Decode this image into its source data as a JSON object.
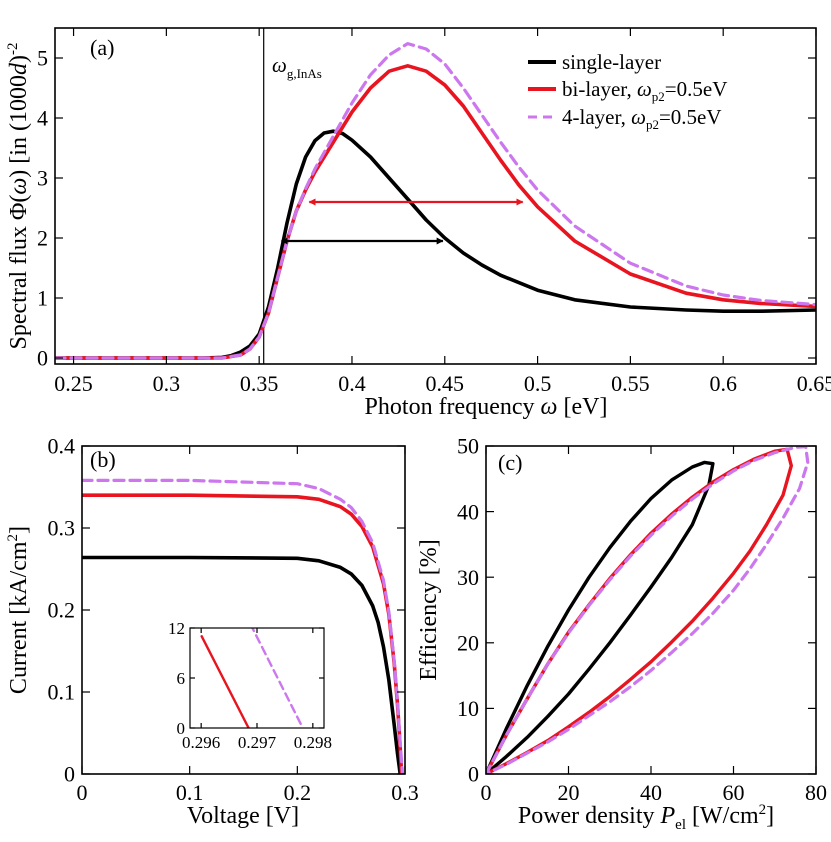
{
  "chart_data": [
    {
      "panel": "(a)",
      "type": "line",
      "xlabel": "Photon frequency",
      "xsymbol": "ω",
      "xunit": "[eV]",
      "ylabel_main": "Spectral flux Φ(",
      "ylabel_sym": "ω",
      "ylabel_rest": ") [in  (1000",
      "ylabel_d": "d",
      "ylabel_end": ")",
      "ylabel_exp": "-2",
      "xlim": [
        0.24,
        0.65
      ],
      "ylim": [
        -0.1,
        5.5
      ],
      "xticks": [
        0.25,
        0.3,
        0.35,
        0.4,
        0.45,
        0.5,
        0.55,
        0.6,
        0.65
      ],
      "xtick_labels": [
        "0.25",
        "0.3",
        "0.35",
        "0.4",
        "0.45",
        "0.5",
        "0.55",
        "0.6",
        "0.65"
      ],
      "yticks": [
        0,
        1,
        2,
        3,
        4,
        5
      ],
      "ytick_labels": [
        "0",
        "1",
        "2",
        "3",
        "4",
        "5"
      ],
      "vline": {
        "x": 0.354,
        "label_sym": "ω",
        "label_sub": "g,InAs"
      },
      "legend_position": "top-right",
      "series": [
        {
          "name_main": "single-layer",
          "name_sym": "",
          "name_sub": "",
          "name_end": "",
          "color": "#000000",
          "dash": "",
          "x": [
            0.24,
            0.3,
            0.32,
            0.33,
            0.335,
            0.34,
            0.345,
            0.35,
            0.355,
            0.36,
            0.365,
            0.37,
            0.375,
            0.38,
            0.385,
            0.39,
            0.395,
            0.4,
            0.41,
            0.42,
            0.43,
            0.44,
            0.45,
            0.46,
            0.47,
            0.48,
            0.5,
            0.52,
            0.55,
            0.58,
            0.6,
            0.62,
            0.65
          ],
          "y": [
            0,
            0,
            0,
            0.01,
            0.04,
            0.1,
            0.2,
            0.4,
            0.85,
            1.5,
            2.25,
            2.9,
            3.35,
            3.62,
            3.75,
            3.78,
            3.74,
            3.63,
            3.35,
            3.0,
            2.65,
            2.3,
            2.0,
            1.75,
            1.55,
            1.38,
            1.13,
            0.97,
            0.85,
            0.8,
            0.78,
            0.78,
            0.8
          ]
        },
        {
          "name_main": "bi-layer, ",
          "name_sym": "ω",
          "name_sub": "p2",
          "name_end": "=0.5eV",
          "color": "#e8141f",
          "dash": "",
          "x": [
            0.24,
            0.33,
            0.34,
            0.345,
            0.35,
            0.355,
            0.36,
            0.365,
            0.37,
            0.375,
            0.38,
            0.39,
            0.4,
            0.41,
            0.42,
            0.43,
            0.44,
            0.45,
            0.46,
            0.47,
            0.48,
            0.49,
            0.5,
            0.52,
            0.55,
            0.58,
            0.6,
            0.62,
            0.65
          ],
          "y": [
            0,
            0,
            0.05,
            0.15,
            0.35,
            0.75,
            1.35,
            1.95,
            2.45,
            2.8,
            3.1,
            3.6,
            4.1,
            4.5,
            4.78,
            4.87,
            4.78,
            4.55,
            4.2,
            3.75,
            3.3,
            2.88,
            2.52,
            1.95,
            1.4,
            1.08,
            0.97,
            0.91,
            0.86
          ]
        },
        {
          "name_main": "4-layer, ",
          "name_sym": "ω",
          "name_sub": "p2",
          "name_end": "=0.5eV",
          "color": "#cc77ee",
          "dash": "10,6",
          "x": [
            0.24,
            0.33,
            0.34,
            0.345,
            0.35,
            0.355,
            0.36,
            0.365,
            0.37,
            0.375,
            0.38,
            0.39,
            0.4,
            0.41,
            0.42,
            0.43,
            0.44,
            0.45,
            0.46,
            0.47,
            0.48,
            0.49,
            0.5,
            0.52,
            0.55,
            0.58,
            0.6,
            0.62,
            0.65
          ],
          "y": [
            0,
            0,
            0.05,
            0.15,
            0.35,
            0.75,
            1.35,
            1.95,
            2.45,
            2.82,
            3.15,
            3.7,
            4.25,
            4.72,
            5.05,
            5.24,
            5.15,
            4.9,
            4.5,
            4.05,
            3.6,
            3.18,
            2.8,
            2.2,
            1.58,
            1.2,
            1.05,
            0.96,
            0.89
          ]
        }
      ],
      "fwhm_arrows": [
        {
          "series": "single-layer",
          "x1": 0.362,
          "x2": 0.449,
          "y": 1.95,
          "color": "#000000"
        },
        {
          "series": "bi-layer",
          "x1": 0.377,
          "x2": 0.492,
          "y": 2.6,
          "color": "#e8141f"
        }
      ]
    },
    {
      "panel": "(b)",
      "type": "line",
      "xlabel": "Voltage [V]",
      "ylabel": "Current [kA/cm",
      "ylabel_exp": "2",
      "ylabel_end": "]",
      "xlim": [
        0,
        0.3
      ],
      "ylim": [
        0,
        0.4
      ],
      "xticks": [
        0,
        0.1,
        0.2,
        0.3
      ],
      "xtick_labels": [
        "0",
        "0.1",
        "0.2",
        "0.3"
      ],
      "yticks": [
        0,
        0.1,
        0.2,
        0.3,
        0.4
      ],
      "ytick_labels": [
        "0",
        "0.1",
        "0.2",
        "0.3",
        "0.4"
      ],
      "series": [
        {
          "name": "single-layer",
          "color": "#000000",
          "dash": "",
          "x": [
            0,
            0.1,
            0.2,
            0.22,
            0.24,
            0.25,
            0.26,
            0.27,
            0.275,
            0.28,
            0.285,
            0.29,
            0.293,
            0.2955
          ],
          "y": [
            0.264,
            0.264,
            0.263,
            0.26,
            0.252,
            0.244,
            0.23,
            0.205,
            0.185,
            0.155,
            0.115,
            0.06,
            0.025,
            0
          ]
        },
        {
          "name": "bi-layer",
          "color": "#e8141f",
          "dash": "",
          "x": [
            0,
            0.1,
            0.2,
            0.22,
            0.24,
            0.25,
            0.26,
            0.27,
            0.28,
            0.285,
            0.29,
            0.293,
            0.295,
            0.2968
          ],
          "y": [
            0.34,
            0.34,
            0.338,
            0.335,
            0.326,
            0.317,
            0.302,
            0.277,
            0.232,
            0.195,
            0.135,
            0.085,
            0.045,
            0
          ]
        },
        {
          "name": "4-layer",
          "color": "#cc77ee",
          "dash": "10,6",
          "x": [
            0,
            0.1,
            0.2,
            0.22,
            0.24,
            0.25,
            0.26,
            0.27,
            0.28,
            0.285,
            0.29,
            0.293,
            0.295,
            0.2977
          ],
          "y": [
            0.358,
            0.358,
            0.354,
            0.348,
            0.335,
            0.325,
            0.308,
            0.282,
            0.236,
            0.198,
            0.138,
            0.088,
            0.048,
            0
          ]
        }
      ],
      "inset": {
        "xlim": [
          0.2958,
          0.2982
        ],
        "ylim": [
          0,
          12
        ],
        "xticks": [
          0.296,
          0.297,
          0.298
        ],
        "xtick_labels": [
          "0.296",
          "0.297",
          "0.298"
        ],
        "yticks": [
          0,
          6,
          12
        ],
        "ytick_labels": [
          "0",
          "6",
          "12"
        ],
        "series": [
          {
            "name": "bi-layer",
            "color": "#e8141f",
            "dash": "",
            "x": [
              0.29601,
              0.29685
            ],
            "y": [
              11,
              0
            ]
          },
          {
            "name": "4-layer",
            "color": "#cc77ee",
            "dash": "8,5",
            "x": [
              0.29688,
              0.29782
            ],
            "y": [
              12.5,
              0
            ]
          }
        ]
      }
    },
    {
      "panel": "(c)",
      "type": "line",
      "xlabel": "Power density ",
      "xlabel_sym": "P",
      "xlabel_sub": "el",
      "xlabel_unit": " [W/cm",
      "xlabel_exp": "2",
      "xlabel_end": "]",
      "ylabel": "Efficiency [%]",
      "xlim": [
        0,
        80
      ],
      "ylim": [
        0,
        50
      ],
      "xticks": [
        0,
        20,
        40,
        60,
        80
      ],
      "xtick_labels": [
        "0",
        "20",
        "40",
        "60",
        "80"
      ],
      "yticks": [
        0,
        10,
        20,
        30,
        40,
        50
      ],
      "ytick_labels": [
        "0",
        "10",
        "20",
        "30",
        "40",
        "50"
      ],
      "series": [
        {
          "name": "single-layer",
          "color": "#000000",
          "dash": "",
          "x": [
            0,
            5,
            10,
            15,
            20,
            25,
            30,
            35,
            40,
            45,
            50,
            53,
            55,
            54,
            50,
            45,
            40,
            35,
            30,
            25,
            20,
            15,
            10,
            5,
            0
          ],
          "y": [
            0,
            7,
            13.5,
            19.5,
            25,
            30,
            34.5,
            38.5,
            42,
            44.8,
            46.8,
            47.5,
            47.3,
            44,
            38,
            33,
            28.5,
            24.2,
            20,
            16,
            12.2,
            8.8,
            5.6,
            2.7,
            0
          ]
        },
        {
          "name": "bi-layer",
          "color": "#e8141f",
          "dash": "",
          "x": [
            0,
            5,
            10,
            15,
            20,
            25,
            30,
            35,
            40,
            45,
            50,
            55,
            60,
            65,
            70,
            73,
            74,
            72,
            68,
            64,
            60,
            55,
            50,
            45,
            40,
            35,
            30,
            25,
            20,
            15,
            10,
            5,
            0
          ],
          "y": [
            0,
            6,
            11.5,
            16.8,
            21.6,
            25.8,
            29.8,
            33.4,
            36.7,
            39.6,
            42.2,
            44.5,
            46.4,
            48,
            49.2,
            49.5,
            47,
            42.5,
            38,
            34,
            30.6,
            26.8,
            23.3,
            20.1,
            17.1,
            14.4,
            11.8,
            9.4,
            7.2,
            5.1,
            3.3,
            1.6,
            0
          ]
        },
        {
          "name": "4-layer",
          "color": "#cc77ee",
          "dash": "9,6",
          "x": [
            0,
            5,
            10,
            15,
            20,
            25,
            30,
            35,
            40,
            45,
            50,
            55,
            60,
            65,
            70,
            75,
            77.5,
            78,
            76,
            72,
            68,
            64,
            60,
            55,
            50,
            45,
            40,
            35,
            30,
            25,
            20,
            15,
            10,
            5,
            0
          ],
          "y": [
            0,
            6,
            11.5,
            16.8,
            21.5,
            25.7,
            29.6,
            33.2,
            36.4,
            39.3,
            41.9,
            44.2,
            46.2,
            47.8,
            49,
            49.8,
            49.9,
            47.5,
            43.5,
            39,
            35,
            31.3,
            28,
            24.5,
            21.4,
            18.5,
            15.8,
            13.3,
            11,
            8.9,
            6.8,
            4.9,
            3.2,
            1.5,
            0
          ]
        }
      ]
    }
  ]
}
